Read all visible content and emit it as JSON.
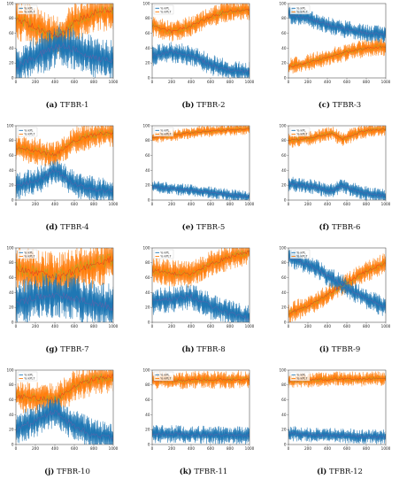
{
  "figure": {
    "colors": {
      "blue": "#1f77b4",
      "orange": "#ff7f0e",
      "green": "#8fb82b",
      "red": "#d62728",
      "purple": "#7b5aa6"
    },
    "legend_labels": [
      "% kPL",
      "% kPL7"
    ]
  },
  "chart_data": [
    {
      "id": "a",
      "label": "(a)",
      "title": "TFBR-1",
      "type": "line",
      "x_ticks": [
        0,
        200,
        400,
        600,
        800,
        1000
      ],
      "y_ticks": [
        0,
        20,
        40,
        60,
        80,
        100
      ],
      "ylim": [
        0,
        100
      ],
      "xlim": [
        0,
        1000
      ],
      "legend": "top-left",
      "grid": false,
      "series": [
        {
          "name": "% kPL",
          "color": "#1f77b4",
          "trend": [
            [
              0,
              15
            ],
            [
              250,
              32
            ],
            [
              450,
              45
            ],
            [
              600,
              38
            ],
            [
              800,
              28
            ],
            [
              1000,
              22
            ]
          ],
          "spread": 28
        },
        {
          "name": "% kPL7",
          "color": "#ff7f0e",
          "trend": [
            [
              0,
              80
            ],
            [
              250,
              65
            ],
            [
              450,
              55
            ],
            [
              600,
              75
            ],
            [
              800,
              88
            ],
            [
              1000,
              92
            ]
          ],
          "spread": 28
        }
      ]
    },
    {
      "id": "b",
      "label": "(b)",
      "title": "TFBR-2",
      "type": "line",
      "x_ticks": [
        0,
        200,
        400,
        600,
        800,
        1000
      ],
      "y_ticks": [
        0,
        20,
        40,
        60,
        80,
        100
      ],
      "ylim": [
        0,
        100
      ],
      "xlim": [
        0,
        1000
      ],
      "legend": "top-left",
      "grid": false,
      "series": [
        {
          "name": "% kPL",
          "color": "#1f77b4",
          "trend": [
            [
              0,
              30
            ],
            [
              200,
              35
            ],
            [
              400,
              30
            ],
            [
              600,
              18
            ],
            [
              800,
              10
            ],
            [
              1000,
              8
            ]
          ],
          "spread": 14
        },
        {
          "name": "% kPL7",
          "color": "#ff7f0e",
          "trend": [
            [
              0,
              70
            ],
            [
              200,
              62
            ],
            [
              400,
              70
            ],
            [
              600,
              82
            ],
            [
              800,
              90
            ],
            [
              1000,
              92
            ]
          ],
          "spread": 14
        }
      ]
    },
    {
      "id": "c",
      "label": "(c)",
      "title": "TFBR-3",
      "type": "line",
      "x_ticks": [
        0,
        200,
        400,
        600,
        800,
        1000
      ],
      "y_ticks": [
        0,
        20,
        40,
        60,
        80,
        100
      ],
      "ylim": [
        0,
        100
      ],
      "xlim": [
        0,
        1000
      ],
      "legend": "top-left",
      "grid": false,
      "series": [
        {
          "name": "% kPL",
          "color": "#1f77b4",
          "trend": [
            [
              0,
              85
            ],
            [
              200,
              80
            ],
            [
              400,
              72
            ],
            [
              600,
              65
            ],
            [
              800,
              60
            ],
            [
              1000,
              58
            ]
          ],
          "spread": 12
        },
        {
          "name": "% kPL7",
          "color": "#ff7f0e",
          "trend": [
            [
              0,
              15
            ],
            [
              200,
              20
            ],
            [
              400,
              28
            ],
            [
              600,
              35
            ],
            [
              800,
              40
            ],
            [
              1000,
              42
            ]
          ],
          "spread": 12
        }
      ]
    },
    {
      "id": "d",
      "label": "(d)",
      "title": "TFBR-4",
      "type": "line",
      "x_ticks": [
        0,
        200,
        400,
        600,
        800,
        1000
      ],
      "y_ticks": [
        0,
        20,
        40,
        60,
        80,
        100
      ],
      "ylim": [
        0,
        100
      ],
      "xlim": [
        0,
        1000
      ],
      "legend": "top-left",
      "grid": false,
      "series": [
        {
          "name": "% kPL",
          "color": "#1f77b4",
          "trend": [
            [
              0,
              18
            ],
            [
              250,
              28
            ],
            [
              400,
              40
            ],
            [
              600,
              22
            ],
            [
              800,
              14
            ],
            [
              1000,
              12
            ]
          ],
          "spread": 18
        },
        {
          "name": "% kPL7",
          "color": "#ff7f0e",
          "trend": [
            [
              0,
              70
            ],
            [
              250,
              65
            ],
            [
              400,
              60
            ],
            [
              600,
              80
            ],
            [
              800,
              88
            ],
            [
              1000,
              90
            ]
          ],
          "spread": 18
        }
      ]
    },
    {
      "id": "e",
      "label": "(e)",
      "title": "TFBR-5",
      "type": "line",
      "x_ticks": [
        0,
        200,
        400,
        600,
        800,
        1000
      ],
      "y_ticks": [
        0,
        20,
        40,
        60,
        80,
        100
      ],
      "ylim": [
        0,
        100
      ],
      "xlim": [
        0,
        1000
      ],
      "legend": "top-left",
      "grid": false,
      "series": [
        {
          "name": "% kPL",
          "color": "#1f77b4",
          "trend": [
            [
              0,
              18
            ],
            [
              250,
              15
            ],
            [
              500,
              12
            ],
            [
              750,
              8
            ],
            [
              1000,
              4
            ]
          ],
          "spread": 8
        },
        {
          "name": "% kPL7",
          "color": "#ff7f0e",
          "trend": [
            [
              0,
              84
            ],
            [
              250,
              88
            ],
            [
              500,
              92
            ],
            [
              750,
              94
            ],
            [
              1000,
              96
            ]
          ],
          "spread": 8
        }
      ]
    },
    {
      "id": "f",
      "label": "(f)",
      "title": "TFBR-6",
      "type": "line",
      "x_ticks": [
        0,
        200,
        400,
        600,
        800,
        1000
      ],
      "y_ticks": [
        0,
        20,
        40,
        60,
        80,
        100
      ],
      "ylim": [
        0,
        100
      ],
      "xlim": [
        0,
        1000
      ],
      "legend": "top-left",
      "grid": false,
      "series": [
        {
          "name": "% kPL",
          "color": "#1f77b4",
          "trend": [
            [
              0,
              22
            ],
            [
              250,
              18
            ],
            [
              450,
              12
            ],
            [
              550,
              20
            ],
            [
              750,
              10
            ],
            [
              1000,
              5
            ]
          ],
          "spread": 10
        },
        {
          "name": "% kPL7",
          "color": "#ff7f0e",
          "trend": [
            [
              0,
              80
            ],
            [
              250,
              84
            ],
            [
              450,
              90
            ],
            [
              550,
              82
            ],
            [
              750,
              92
            ],
            [
              1000,
              96
            ]
          ],
          "spread": 10
        }
      ]
    },
    {
      "id": "g",
      "label": "(g)",
      "title": "TFBR-7",
      "type": "line",
      "x_ticks": [
        0,
        200,
        400,
        600,
        800,
        1000
      ],
      "y_ticks": [
        0,
        20,
        40,
        60,
        80,
        100
      ],
      "ylim": [
        0,
        100
      ],
      "xlim": [
        0,
        1000
      ],
      "legend": "top-left",
      "grid": false,
      "series": [
        {
          "name": "% kPL",
          "color": "#1f77b4",
          "trend": [
            [
              0,
              25
            ],
            [
              250,
              35
            ],
            [
              450,
              38
            ],
            [
              650,
              30
            ],
            [
              850,
              24
            ],
            [
              1000,
              20
            ]
          ],
          "spread": 32
        },
        {
          "name": "% kPL7",
          "color": "#ff7f0e",
          "trend": [
            [
              0,
              72
            ],
            [
              250,
              65
            ],
            [
              450,
              62
            ],
            [
              650,
              72
            ],
            [
              850,
              80
            ],
            [
              1000,
              85
            ]
          ],
          "spread": 32
        }
      ]
    },
    {
      "id": "h",
      "label": "(h)",
      "title": "TFBR-8",
      "type": "line",
      "x_ticks": [
        0,
        200,
        400,
        600,
        800,
        1000
      ],
      "y_ticks": [
        0,
        20,
        40,
        60,
        80,
        100
      ],
      "ylim": [
        0,
        100
      ],
      "xlim": [
        0,
        1000
      ],
      "legend": "top-left",
      "grid": false,
      "series": [
        {
          "name": "% kPL",
          "color": "#1f77b4",
          "trend": [
            [
              0,
              28
            ],
            [
              250,
              32
            ],
            [
              400,
              35
            ],
            [
              600,
              22
            ],
            [
              800,
              12
            ],
            [
              1000,
              5
            ]
          ],
          "spread": 18
        },
        {
          "name": "% kPL7",
          "color": "#ff7f0e",
          "trend": [
            [
              0,
              70
            ],
            [
              250,
              65
            ],
            [
              400,
              65
            ],
            [
              600,
              78
            ],
            [
              800,
              88
            ],
            [
              1000,
              95
            ]
          ],
          "spread": 18
        }
      ]
    },
    {
      "id": "i",
      "label": "(i)",
      "title": "TFBR-9",
      "type": "line",
      "x_ticks": [
        0,
        200,
        400,
        600,
        800,
        1000
      ],
      "y_ticks": [
        0,
        20,
        40,
        60,
        80,
        100
      ],
      "ylim": [
        0,
        100
      ],
      "xlim": [
        0,
        1000
      ],
      "legend": "top-left",
      "grid": false,
      "series": [
        {
          "name": "% kPL",
          "color": "#1f77b4",
          "trend": [
            [
              0,
              88
            ],
            [
              250,
              75
            ],
            [
              500,
              55
            ],
            [
              750,
              35
            ],
            [
              1000,
              20
            ]
          ],
          "spread": 14
        },
        {
          "name": "% kPL7",
          "color": "#ff7f0e",
          "trend": [
            [
              0,
              12
            ],
            [
              250,
              25
            ],
            [
              500,
              45
            ],
            [
              750,
              65
            ],
            [
              1000,
              80
            ]
          ],
          "spread": 14
        }
      ]
    },
    {
      "id": "j",
      "label": "(j)",
      "title": "TFBR-10",
      "type": "line",
      "x_ticks": [
        0,
        200,
        400,
        600,
        800,
        1000
      ],
      "y_ticks": [
        0,
        20,
        40,
        60,
        80,
        100
      ],
      "ylim": [
        0,
        100
      ],
      "xlim": [
        0,
        1000
      ],
      "legend": "top-left",
      "grid": false,
      "series": [
        {
          "name": "% kPL",
          "color": "#1f77b4",
          "trend": [
            [
              0,
              20
            ],
            [
              250,
              35
            ],
            [
              400,
              45
            ],
            [
              600,
              25
            ],
            [
              800,
              12
            ],
            [
              1000,
              8
            ]
          ],
          "spread": 22
        },
        {
          "name": "% kPL7",
          "color": "#ff7f0e",
          "trend": [
            [
              0,
              65
            ],
            [
              250,
              62
            ],
            [
              400,
              60
            ],
            [
              600,
              78
            ],
            [
              800,
              88
            ],
            [
              1000,
              92
            ]
          ],
          "spread": 22
        }
      ]
    },
    {
      "id": "k",
      "label": "(k)",
      "title": "TFBR-11",
      "type": "line",
      "x_ticks": [
        0,
        200,
        400,
        600,
        800,
        1000
      ],
      "y_ticks": [
        0,
        20,
        40,
        60,
        80,
        100
      ],
      "ylim": [
        0,
        100
      ],
      "xlim": [
        0,
        1000
      ],
      "legend": "top-left",
      "grid": false,
      "series": [
        {
          "name": "% kPL",
          "color": "#1f77b4",
          "trend": [
            [
              0,
              14
            ],
            [
              250,
              14
            ],
            [
              500,
              13
            ],
            [
              750,
              13
            ],
            [
              1000,
              12
            ]
          ],
          "spread": 12
        },
        {
          "name": "% kPL7",
          "color": "#ff7f0e",
          "trend": [
            [
              0,
              86
            ],
            [
              250,
              86
            ],
            [
              500,
              87
            ],
            [
              750,
              87
            ],
            [
              1000,
              88
            ]
          ],
          "spread": 12
        }
      ]
    },
    {
      "id": "l",
      "label": "(l)",
      "title": "TFBR-12",
      "type": "line",
      "x_ticks": [
        0,
        200,
        400,
        600,
        800,
        1000
      ],
      "y_ticks": [
        0,
        20,
        40,
        60,
        80,
        100
      ],
      "ylim": [
        0,
        100
      ],
      "xlim": [
        0,
        1000
      ],
      "legend": "top-left",
      "grid": false,
      "series": [
        {
          "name": "% kPL",
          "color": "#1f77b4",
          "trend": [
            [
              0,
              15
            ],
            [
              250,
              13
            ],
            [
              500,
              12
            ],
            [
              750,
              11
            ],
            [
              1000,
              10
            ]
          ],
          "spread": 10
        },
        {
          "name": "% kPL7",
          "color": "#ff7f0e",
          "trend": [
            [
              0,
              85
            ],
            [
              250,
              87
            ],
            [
              500,
              88
            ],
            [
              750,
              88
            ],
            [
              1000,
              89
            ]
          ],
          "spread": 10
        }
      ]
    }
  ]
}
